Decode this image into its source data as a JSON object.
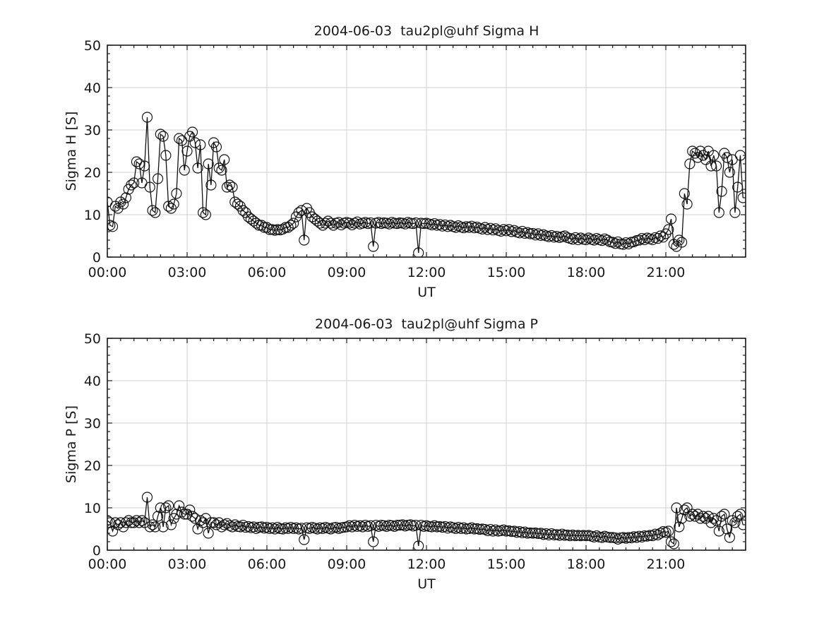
{
  "figure": {
    "background": "#ffffff",
    "text_color": "#191919",
    "axis_color": "#1a1a1a",
    "grid_color": "#d0d0d0",
    "marker_color": "#111111"
  },
  "chart_data": [
    {
      "type": "line",
      "title": "2004-06-03  tau2pl@uhf Sigma H",
      "xlabel": "UT",
      "ylabel": "Sigma H [S]",
      "xlim": [
        0,
        24
      ],
      "ylim": [
        0,
        50
      ],
      "x_tick_positions": [
        0,
        3,
        6,
        9,
        12,
        15,
        18,
        21
      ],
      "x_tick_labels": [
        "00:00",
        "03:00",
        "06:00",
        "09:00",
        "12:00",
        "15:00",
        "18:00",
        "21:00"
      ],
      "y_tick_positions": [
        0,
        10,
        20,
        30,
        40,
        50
      ],
      "y_tick_labels": [
        "0",
        "10",
        "20",
        "30",
        "40",
        "50"
      ],
      "x_minor_step": 0.5,
      "y_minor_step": 2,
      "grid": true,
      "legend": null,
      "marker": "open-circle",
      "x_start_hours": 0,
      "x_step_hours": 0.1,
      "values": [
        13,
        7.5,
        7.2,
        12,
        11.5,
        13,
        12.5,
        14,
        16,
        17,
        17.5,
        22.5,
        22,
        17.5,
        21.5,
        33,
        16.5,
        11,
        10.5,
        18.5,
        29,
        28.5,
        24,
        12,
        11.5,
        12.5,
        15,
        28,
        27.5,
        20.5,
        25,
        28.5,
        29.5,
        27,
        21,
        26.5,
        10.5,
        10,
        22,
        17,
        27,
        26,
        21,
        20.5,
        23,
        16.5,
        17,
        16.5,
        13,
        12.5,
        12,
        11,
        10.5,
        9.5,
        9,
        8.5,
        8,
        7.5,
        7.5,
        7,
        7,
        6.5,
        6.5,
        6.3,
        6.5,
        6.4,
        6.6,
        7,
        7,
        7.5,
        8,
        9.5,
        10.5,
        11,
        4,
        11.5,
        10.5,
        9.5,
        9,
        8.5,
        8,
        7.5,
        8,
        8.5,
        8,
        7.5,
        8,
        8.2,
        7.6,
        8,
        8.2,
        8,
        7.6,
        8,
        8.3,
        7.8,
        8,
        8.2,
        7.9,
        8.1,
        2.5,
        8,
        8.2,
        7.9,
        8.1,
        8,
        7.8,
        8.2,
        8,
        7.9,
        8.1,
        8,
        7.8,
        8.2,
        8,
        7.9,
        8.1,
        1,
        8,
        7.9,
        8,
        7.8,
        7.6,
        7.9,
        7.5,
        7.7,
        7.3,
        7.6,
        7.2,
        7.5,
        7.2,
        7,
        7.4,
        7.1,
        6.9,
        7.2,
        7,
        7.3,
        6.9,
        7.1,
        6.8,
        6.6,
        7,
        6.5,
        6.8,
        6.4,
        6.7,
        6.3,
        6.1,
        6.5,
        6.2,
        6.5,
        6,
        6.3,
        5.9,
        5.7,
        6.1,
        5.6,
        5.8,
        5.5,
        5.6,
        5.2,
        5.5,
        5.1,
        5.3,
        5,
        4.8,
        5.1,
        4.7,
        4.9,
        4.6,
        4.8,
        5,
        4.6,
        4.4,
        4.2,
        4.6,
        4.1,
        4.5,
        4.2,
        4.1,
        4.5,
        4.2,
        4,
        4.4,
        4.1,
        3.9,
        4.3,
        4,
        3.6,
        3.5,
        3.2,
        3.6,
        3.1,
        3,
        3.4,
        3.1,
        3.5,
        3.6,
        3.9,
        4,
        4.4,
        4.1,
        4.5,
        4.3,
        4.1,
        4.6,
        4.4,
        5,
        4.7,
        5.5,
        6.5,
        9,
        3,
        2.5,
        4,
        3.5,
        15,
        12.5,
        22,
        25,
        24.5,
        23.5,
        25,
        24,
        23,
        25,
        21.5,
        24,
        21.5,
        10.5,
        15.5,
        24.5,
        23.5,
        20,
        23,
        10.5,
        16.5,
        24,
        14
      ]
    },
    {
      "type": "line",
      "title": "2004-06-03  tau2pl@uhf Sigma P",
      "xlabel": "UT",
      "ylabel": "Sigma P [S]",
      "xlim": [
        0,
        24
      ],
      "ylim": [
        0,
        50
      ],
      "x_tick_positions": [
        0,
        3,
        6,
        9,
        12,
        15,
        18,
        21
      ],
      "x_tick_labels": [
        "00:00",
        "03:00",
        "06:00",
        "09:00",
        "12:00",
        "15:00",
        "18:00",
        "21:00"
      ],
      "y_tick_positions": [
        0,
        10,
        20,
        30,
        40,
        50
      ],
      "y_tick_labels": [
        "0",
        "10",
        "20",
        "30",
        "40",
        "50"
      ],
      "x_minor_step": 0.5,
      "y_minor_step": 2,
      "grid": true,
      "legend": null,
      "marker": "open-circle",
      "x_start_hours": 0,
      "x_step_hours": 0.1,
      "values": [
        7,
        6.5,
        4.5,
        6.5,
        6,
        6.5,
        5.5,
        6.5,
        7,
        6.5,
        6.5,
        7,
        6.5,
        7,
        6.5,
        12.5,
        5.5,
        6,
        5.5,
        8,
        10,
        5.5,
        10,
        10.5,
        6,
        7.5,
        8.5,
        10.5,
        9,
        8.5,
        8.5,
        9.5,
        8,
        7.5,
        5,
        7,
        6.5,
        7.5,
        4,
        6.5,
        6.5,
        6,
        6.5,
        5.5,
        6,
        6.3,
        5.8,
        5.5,
        6,
        5.6,
        5.5,
        5.9,
        5.4,
        5.6,
        5.3,
        5.5,
        5.1,
        5.4,
        5.5,
        5.2,
        5.4,
        5.1,
        5.3,
        5,
        5.4,
        5.1,
        5,
        5.3,
        5.1,
        5.4,
        5.1,
        5.3,
        5,
        5.2,
        2.5,
        5.3,
        5.1,
        5.4,
        5.2,
        5,
        5.3,
        5.1,
        5.4,
        5.2,
        5,
        5.3,
        5.4,
        5.1,
        5.3,
        5.4,
        5.5,
        5.8,
        5.5,
        5.9,
        5.6,
        5.8,
        5.5,
        5.9,
        5.6,
        5.8,
        2,
        5.9,
        5.6,
        5.9,
        5.8,
        5.6,
        5.9,
        5.8,
        5.6,
        5.9,
        5.9,
        6,
        5.7,
        5.9,
        6,
        5.7,
        5.9,
        1,
        5.9,
        5.6,
        5.8,
        5.6,
        5.5,
        5.8,
        5.5,
        5.6,
        5.4,
        5.6,
        5.2,
        5.5,
        5.3,
        5.1,
        5.4,
        5.1,
        5.3,
        5,
        5.1,
        5.3,
        5,
        5.1,
        4.9,
        5,
        4.9,
        4.6,
        4.9,
        4.5,
        4.8,
        4.5,
        4.6,
        4.8,
        4.5,
        4.6,
        4.4,
        4.5,
        4.2,
        4.4,
        4.1,
        4.3,
        4,
        4.1,
        4,
        4.1,
        3.9,
        4,
        3.7,
        3.9,
        3.6,
        3.9,
        3.6,
        3.7,
        3.5,
        3.8,
        3.5,
        3.6,
        3.4,
        3.6,
        3.4,
        3.5,
        3.4,
        3.5,
        3.4,
        3.5,
        3.3,
        3.1,
        3.4,
        3.1,
        3,
        3.3,
        3.1,
        3,
        3,
        2.9,
        2.6,
        2.9,
        3,
        2.8,
        3,
        2.9,
        3.2,
        3,
        3.3,
        3.1,
        3.4,
        3.3,
        3.5,
        3.4,
        3.8,
        3.6,
        4,
        4.4,
        4.2,
        4.5,
        2,
        1.5,
        10,
        5.5,
        7.5,
        9.5,
        10,
        8,
        8.5,
        8,
        8.5,
        7.5,
        8,
        7.5,
        8,
        6.5,
        7.5,
        7,
        4.5,
        8,
        8.5,
        5,
        3,
        7,
        6.5,
        8,
        8.5,
        6
      ]
    }
  ]
}
